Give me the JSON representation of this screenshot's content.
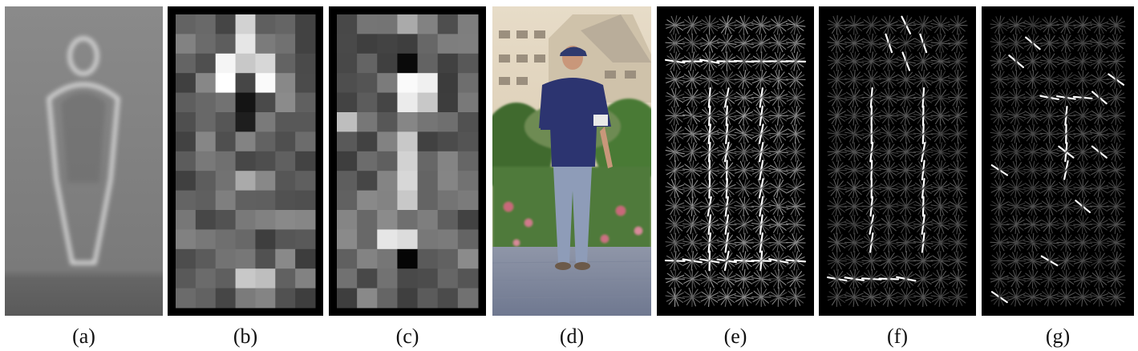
{
  "figure": {
    "panels": [
      {
        "key": "a",
        "label": "(a)",
        "content": "average-gradient"
      },
      {
        "key": "b",
        "label": "(b)",
        "content": "positive-block-weights"
      },
      {
        "key": "c",
        "label": "(c)",
        "content": "negative-block-weights"
      },
      {
        "key": "d",
        "label": "(d)",
        "content": "person-photo"
      },
      {
        "key": "e",
        "label": "(e)",
        "content": "hog-descriptor"
      },
      {
        "key": "f",
        "label": "(f)",
        "content": "hog-positive-weighted"
      },
      {
        "key": "g",
        "label": "(g)",
        "content": "hog-negative-weighted"
      }
    ]
  }
}
